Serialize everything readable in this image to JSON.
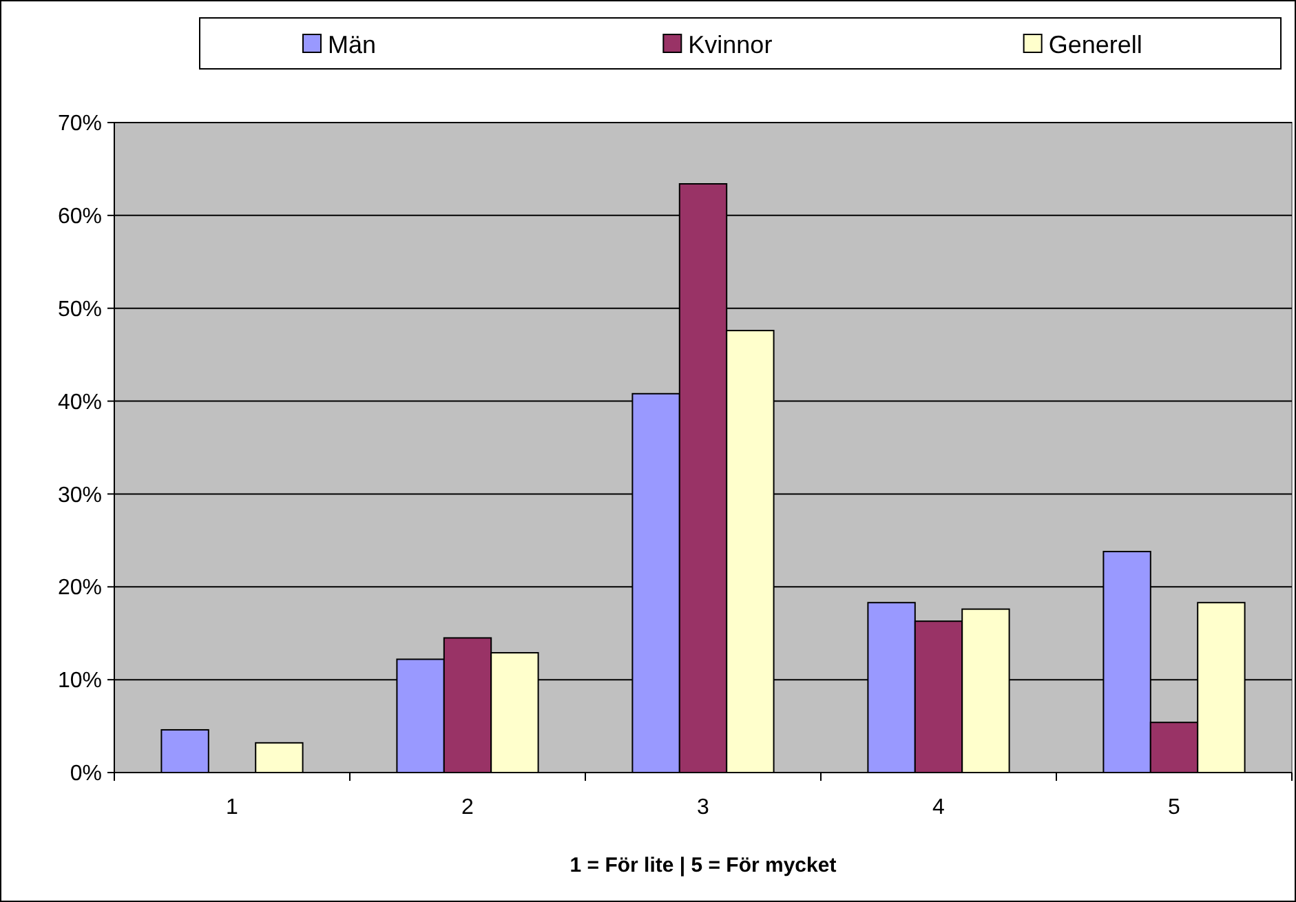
{
  "chart_data": {
    "type": "bar",
    "xlabel": "1 = För lite | 5 = För mycket",
    "categories": [
      "1",
      "2",
      "3",
      "4",
      "5"
    ],
    "series": [
      {
        "name": "Män",
        "color": "#9999ff",
        "values": [
          4.6,
          12.2,
          40.8,
          18.3,
          23.8
        ]
      },
      {
        "name": "Kvinnor",
        "color": "#993366",
        "values": [
          0,
          14.5,
          63.4,
          16.3,
          5.4
        ]
      },
      {
        "name": "Generell",
        "color": "#ffffcc",
        "values": [
          3.2,
          12.9,
          47.6,
          17.6,
          18.3
        ]
      }
    ],
    "ylim": [
      0,
      70
    ],
    "yticks": [
      {
        "value": 0,
        "label": "0%"
      },
      {
        "value": 10,
        "label": "10%"
      },
      {
        "value": 20,
        "label": "20%"
      },
      {
        "value": 30,
        "label": "30%"
      },
      {
        "value": 40,
        "label": "40%"
      },
      {
        "value": 50,
        "label": "50%"
      },
      {
        "value": 60,
        "label": "60%"
      },
      {
        "value": 70,
        "label": "70%"
      }
    ],
    "grid": "y",
    "legend": "top"
  }
}
